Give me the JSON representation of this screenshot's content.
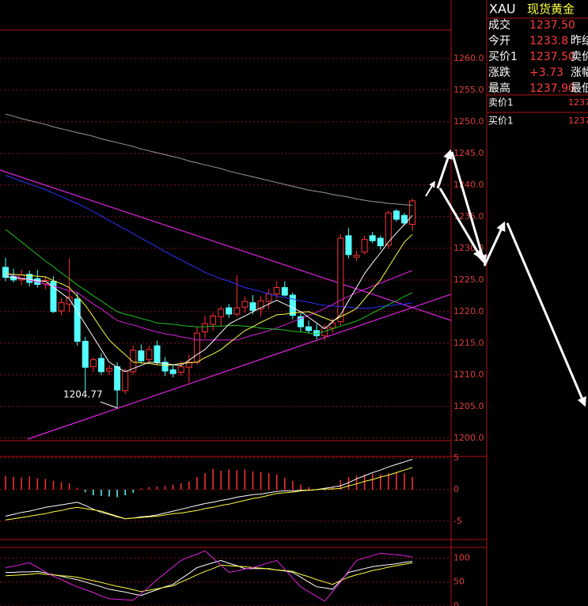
{
  "chart_data": [
    {
      "type": "candlestick",
      "up_color": "#ff3232",
      "down_color": "#54ffff",
      "grid": true,
      "ylim": [
        1199.6,
        1264.5
      ],
      "yticks": [
        {
          "value": 1200,
          "label": "1200.0"
        },
        {
          "value": 1205,
          "label": "1205.0"
        },
        {
          "value": 1210,
          "label": "1210.0"
        },
        {
          "value": 1215,
          "label": "1215.0"
        },
        {
          "value": 1220,
          "label": "1220.0"
        },
        {
          "value": 1225,
          "label": "1225.0"
        },
        {
          "value": 1230,
          "label": "1230.0"
        },
        {
          "value": 1235,
          "label": "1235.0"
        },
        {
          "value": 1240,
          "label": "1240.0"
        },
        {
          "value": 1245,
          "label": "1245.0"
        },
        {
          "value": 1250,
          "label": "1250.0"
        },
        {
          "value": 1255,
          "label": "1255.0"
        },
        {
          "value": 1260,
          "label": "1260.0"
        }
      ],
      "categories": [
        null,
        null,
        null,
        null,
        null,
        null,
        null,
        null,
        null,
        null,
        null,
        null,
        null,
        null,
        null,
        null,
        null,
        null,
        null,
        null,
        null,
        null,
        null,
        null,
        null,
        null,
        null,
        null,
        null,
        null,
        null,
        null,
        null,
        null,
        null,
        null,
        null,
        null,
        null,
        null,
        null,
        null,
        null,
        null,
        null,
        null,
        null,
        null,
        null,
        null,
        null,
        null
      ],
      "open": [
        1227.0,
        1225.6,
        1225.0,
        1225.9,
        1225.2,
        1224.4,
        1224.8,
        1220.1,
        1221.2,
        1222.0,
        1215.3,
        1211.3,
        1212.6,
        1210.6,
        1211.3,
        1207.5,
        1210.5,
        1213.8,
        1212.4,
        1214.6,
        1212.0,
        1210.8,
        1210.4,
        1211.2,
        1212.0,
        1216.8,
        1218.0,
        1219.2,
        1220.6,
        1219.6,
        1220.7,
        1221.4,
        1220.4,
        1221.6,
        1222.8,
        1223.8,
        1222.6,
        1219.2,
        1217.6,
        1217.0,
        1216.2,
        1217.4,
        1218.4,
        1232.0,
        1228.6,
        1229.4,
        1232.0,
        1231.6,
        1230.5,
        1235.9,
        1235.2,
        1233.8
      ],
      "high": [
        1228.5,
        1226.8,
        1226.6,
        1226.5,
        1226.6,
        1225.6,
        1225.6,
        1222.2,
        1228.4,
        1223.0,
        1216.0,
        1212.8,
        1213.4,
        1211.6,
        1212.0,
        1211.0,
        1214.6,
        1214.8,
        1214.6,
        1215.4,
        1212.8,
        1211.6,
        1212.2,
        1213.2,
        1217.6,
        1219.4,
        1219.8,
        1220.8,
        1221.2,
        1225.8,
        1222.4,
        1222.6,
        1222.4,
        1223.6,
        1224.8,
        1224.8,
        1223.0,
        1219.8,
        1218.6,
        1218.0,
        1218.0,
        1219.0,
        1232.2,
        1233.2,
        1229.6,
        1232.0,
        1232.6,
        1232.0,
        1236.0,
        1236.2,
        1235.6,
        1237.9
      ],
      "low": [
        1224.8,
        1224.6,
        1224.2,
        1224.0,
        1223.8,
        1223.5,
        1219.8,
        1219.4,
        1219.9,
        1214.6,
        1207.6,
        1210.4,
        1210.0,
        1210.0,
        1204.77,
        1207.0,
        1210.0,
        1211.8,
        1212.0,
        1211.6,
        1209.8,
        1209.6,
        1209.8,
        1208.8,
        1211.6,
        1215.8,
        1217.0,
        1217.6,
        1219.0,
        1219.2,
        1219.8,
        1219.6,
        1219.2,
        1220.4,
        1222.0,
        1222.4,
        1218.8,
        1216.8,
        1216.6,
        1215.6,
        1215.4,
        1216.6,
        1217.8,
        1228.4,
        1228.0,
        1229.0,
        1230.8,
        1229.8,
        1230.0,
        1234.2,
        1233.6,
        1232.8
      ],
      "close": [
        1225.4,
        1225.0,
        1225.8,
        1224.6,
        1224.3,
        1224.9,
        1220.0,
        1221.4,
        1222.3,
        1215.3,
        1211.2,
        1212.4,
        1210.5,
        1211.0,
        1207.6,
        1210.6,
        1213.9,
        1212.2,
        1214.0,
        1212.0,
        1210.6,
        1210.2,
        1211.3,
        1212.0,
        1216.6,
        1218.1,
        1219.3,
        1220.4,
        1219.6,
        1220.6,
        1221.6,
        1220.2,
        1221.7,
        1222.8,
        1223.8,
        1222.6,
        1219.4,
        1217.6,
        1217.0,
        1216.2,
        1217.4,
        1218.2,
        1231.6,
        1229.0,
        1228.9,
        1231.4,
        1231.2,
        1230.4,
        1235.6,
        1234.6,
        1234.0,
        1237.5
      ],
      "overlays": [
        {
          "color": "#9a9a9a",
          "values": [
            1251.2,
            1250.9,
            1250.5,
            1250.2,
            1249.9,
            1249.6,
            1249.2,
            1248.9,
            1248.6,
            1248.3,
            1248.0,
            1247.7,
            1247.3,
            1247.0,
            1246.7,
            1246.4,
            1246.1,
            1245.7,
            1245.4,
            1245.1,
            1244.8,
            1244.5,
            1244.2,
            1243.8,
            1243.5,
            1243.2,
            1242.9,
            1242.6,
            1242.2,
            1241.9,
            1241.6,
            1241.3,
            1241.0,
            1240.7,
            1240.4,
            1240.1,
            1239.8,
            1239.5,
            1239.2,
            1239.0,
            1238.8,
            1238.5,
            1238.3,
            1238.1,
            1237.8,
            1237.6,
            1237.4,
            1237.3,
            1237.1,
            1237.0,
            1236.9,
            1236.8
          ]
        },
        {
          "color": "#3030ff",
          "values": [
            1241.5,
            1241.1,
            1240.6,
            1240.2,
            1239.7,
            1239.3,
            1238.7,
            1238.2,
            1237.6,
            1237.1,
            1236.5,
            1235.8,
            1235.1,
            1234.4,
            1233.7,
            1233.0,
            1232.3,
            1231.6,
            1230.9,
            1230.2,
            1229.5,
            1228.8,
            1228.2,
            1227.5,
            1226.9,
            1226.2,
            1225.7,
            1225.2,
            1224.8,
            1224.3,
            1223.8,
            1223.5,
            1223.2,
            1222.8,
            1222.5,
            1222.2,
            1222.0,
            1221.7,
            1221.5,
            1221.2,
            1221.0,
            1220.9,
            1220.8,
            1220.7,
            1220.6,
            1220.5,
            1220.6,
            1220.8,
            1220.9,
            1221.1,
            1221.2,
            1221.4
          ]
        },
        {
          "color": "#e020e0",
          "values": [
            1226.0,
            1225.7,
            1225.3,
            1225.0,
            1224.7,
            1224.3,
            1224.0,
            1223.7,
            1223.3,
            1223.0,
            1222.1,
            1221.2,
            1220.4,
            1219.5,
            1218.6,
            1218.2,
            1217.9,
            1217.5,
            1217.1,
            1216.8,
            1216.5,
            1216.3,
            1216.0,
            1215.8,
            1215.5,
            1215.5,
            1215.5,
            1215.5,
            1215.5,
            1215.5,
            1215.9,
            1216.3,
            1216.6,
            1217.0,
            1217.4,
            1217.9,
            1218.4,
            1218.9,
            1219.4,
            1219.9,
            1220.5,
            1221.1,
            1221.8,
            1222.4,
            1223.0,
            1223.5,
            1224.0,
            1224.5,
            1225.0,
            1225.5,
            1226.0,
            1226.5
          ]
        },
        {
          "color": "#20c020",
          "values": [
            1233.0,
            1232.0,
            1231.0,
            1230.0,
            1229.0,
            1228.0,
            1227.1,
            1226.1,
            1225.2,
            1224.2,
            1223.4,
            1222.5,
            1221.7,
            1220.8,
            1220.0,
            1219.6,
            1219.3,
            1218.9,
            1218.6,
            1218.2,
            1218.1,
            1218.0,
            1217.8,
            1217.7,
            1217.6,
            1217.6,
            1217.7,
            1217.7,
            1217.8,
            1217.8,
            1217.7,
            1217.6,
            1217.4,
            1217.3,
            1217.2,
            1217.1,
            1216.9,
            1216.8,
            1216.6,
            1216.5,
            1216.9,
            1217.3,
            1217.7,
            1218.1,
            1218.5,
            1219.1,
            1219.8,
            1220.4,
            1221.1,
            1221.7,
            1222.4,
            1223.0
          ]
        },
        {
          "color": "#ffff40",
          "values": [
            1226.0,
            1225.9,
            1225.8,
            1225.7,
            1225.6,
            1225.5,
            1224.9,
            1224.4,
            1223.8,
            1222.4,
            1221.0,
            1219.2,
            1217.3,
            1215.5,
            1214.3,
            1213.2,
            1212.0,
            1211.9,
            1211.8,
            1211.6,
            1211.5,
            1211.6,
            1211.8,
            1211.9,
            1212.0,
            1212.7,
            1213.3,
            1214.0,
            1215.0,
            1216.0,
            1217.0,
            1217.6,
            1218.3,
            1218.9,
            1219.5,
            1219.6,
            1219.8,
            1219.9,
            1220.0,
            1219.5,
            1219.0,
            1218.5,
            1219.2,
            1219.8,
            1220.5,
            1222.0,
            1223.5,
            1225.0,
            1227.0,
            1229.0,
            1231.0,
            1232.2
          ]
        },
        {
          "color": "#ffffff",
          "values": [
            1225.5,
            1225.4,
            1225.2,
            1225.1,
            1224.9,
            1224.8,
            1223.9,
            1222.9,
            1222.0,
            1220.0,
            1218.0,
            1216.0,
            1214.0,
            1212.0,
            1211.2,
            1210.5,
            1211.0,
            1211.5,
            1212.0,
            1211.9,
            1211.8,
            1211.6,
            1211.5,
            1212.3,
            1213.2,
            1214.0,
            1215.3,
            1216.7,
            1218.0,
            1218.7,
            1219.3,
            1220.0,
            1220.6,
            1221.2,
            1221.8,
            1221.2,
            1220.6,
            1220.0,
            1219.1,
            1218.2,
            1217.3,
            1218.4,
            1219.5,
            1221.7,
            1223.8,
            1226.0,
            1227.7,
            1229.3,
            1231.0,
            1232.4,
            1233.8,
            1235.2
          ]
        }
      ],
      "annotation": {
        "value": 1204.77,
        "label": "1204.77"
      }
    },
    {
      "type": "bar",
      "positive_color": "#ff3232",
      "negative_color": "#54ffff",
      "grid": true,
      "ylim": [
        -7.9,
        5.25
      ],
      "yticks": [
        5,
        0,
        -5
      ],
      "values": [
        2.2,
        2.0,
        1.9,
        2.1,
        1.8,
        1.7,
        1.4,
        1.2,
        1.0,
        0.3,
        -0.4,
        -0.9,
        -1.0,
        -1.1,
        -1.2,
        -0.9,
        -0.5,
        0.2,
        0.4,
        0.5,
        0.6,
        0.8,
        1.0,
        1.3,
        2.0,
        2.6,
        3.3,
        3.0,
        3.2,
        3.1,
        3.2,
        2.9,
        2.8,
        2.6,
        2.4,
        1.9,
        1.4,
        0.8,
        0.4,
        0.1,
        -0.1,
        0.4,
        1.5,
        2.0,
        2.2,
        2.4,
        2.5,
        2.4,
        2.6,
        2.7,
        2.6,
        2.0
      ],
      "overlays": [
        {
          "color": "#ffffff",
          "values": [
            -4.2,
            -3.9,
            -3.6,
            -3.4,
            -3.1,
            -2.8,
            -2.6,
            -2.4,
            -2.2,
            -2.0,
            -2.5,
            -3.1,
            -3.6,
            -3.9,
            -4.3,
            -4.6,
            -4.5,
            -4.3,
            -4.2,
            -4.0,
            -3.7,
            -3.4,
            -3.1,
            -2.8,
            -2.5,
            -2.2,
            -2.0,
            -1.7,
            -1.5,
            -1.2,
            -1.0,
            -0.8,
            -0.7,
            -0.5,
            -0.3,
            -0.2,
            -0.2,
            -0.1,
            -0.1,
            0.0,
            0.2,
            0.4,
            0.6,
            1.1,
            1.7,
            2.2,
            2.7,
            3.1,
            3.6,
            4.0,
            4.4,
            4.8
          ]
        },
        {
          "color": "#ffff40",
          "values": [
            -4.8,
            -4.6,
            -4.4,
            -4.2,
            -4.0,
            -3.8,
            -3.5,
            -3.3,
            -3.0,
            -2.8,
            -3.0,
            -3.2,
            -3.4,
            -3.8,
            -4.2,
            -4.6,
            -4.5,
            -4.4,
            -4.3,
            -4.2,
            -4.0,
            -3.8,
            -3.7,
            -3.5,
            -3.3,
            -3.0,
            -2.8,
            -2.5,
            -2.3,
            -2.0,
            -1.7,
            -1.4,
            -1.2,
            -0.9,
            -0.6,
            -0.5,
            -0.4,
            -0.2,
            -0.1,
            0.0,
            0.1,
            0.1,
            0.2,
            0.6,
            0.9,
            1.3,
            1.6,
            2.0,
            2.3,
            2.7,
            3.1,
            3.5
          ]
        }
      ]
    },
    {
      "type": "line",
      "grid": true,
      "ylim": [
        0,
        122
      ],
      "yticks": [
        100,
        50,
        0
      ],
      "overlays": [
        {
          "color": "#ffffff",
          "values": [
            70,
            70,
            71,
            71,
            72,
            69,
            65,
            62,
            58,
            55,
            50,
            45,
            40,
            35,
            32,
            29,
            25,
            22,
            28,
            34,
            40,
            45,
            57,
            68,
            80,
            85,
            90,
            95,
            89,
            84,
            78,
            78,
            78,
            78,
            75,
            73,
            70,
            60,
            50,
            40,
            38,
            35,
            53,
            70,
            74,
            78,
            82,
            84,
            86,
            88,
            91,
            93
          ]
        },
        {
          "color": "#ffff40",
          "values": [
            63,
            64,
            65,
            66,
            68,
            66,
            65,
            63,
            62,
            60,
            56,
            53,
            49,
            45,
            41,
            38,
            34,
            30,
            33,
            36,
            39,
            42,
            50,
            57,
            65,
            72,
            78,
            85,
            84,
            83,
            82,
            80,
            79,
            77,
            75,
            74,
            72,
            66,
            61,
            55,
            50,
            45,
            53,
            60,
            65,
            69,
            74,
            77,
            81,
            84,
            87,
            90
          ]
        },
        {
          "color": "#e020e0",
          "values": [
            80,
            83,
            87,
            90,
            81,
            71,
            62,
            55,
            47,
            40,
            34,
            28,
            21,
            15,
            14,
            13,
            12,
            26,
            40,
            55,
            68,
            82,
            95,
            102,
            108,
            115,
            100,
            85,
            70,
            73,
            77,
            80,
            85,
            90,
            95,
            77,
            58,
            40,
            30,
            20,
            10,
            30,
            50,
            73,
            95,
            100,
            105,
            110,
            108,
            107,
            105,
            102
          ]
        }
      ]
    }
  ],
  "quote_panel": {
    "symbol": "XAU",
    "name": "现货黄金",
    "rows": [
      [
        "成交",
        "1237.50"
      ],
      [
        "今开",
        "1233.8",
        "昨结"
      ],
      [
        "买价1",
        "1237.50",
        "卖价"
      ],
      [
        "涨跌",
        "+3.73",
        "涨幅"
      ],
      [
        "最高",
        "1237.90",
        "最低"
      ]
    ],
    "depth": [
      [
        "卖价1",
        "1237"
      ],
      [
        "买价1",
        "1237"
      ]
    ]
  }
}
